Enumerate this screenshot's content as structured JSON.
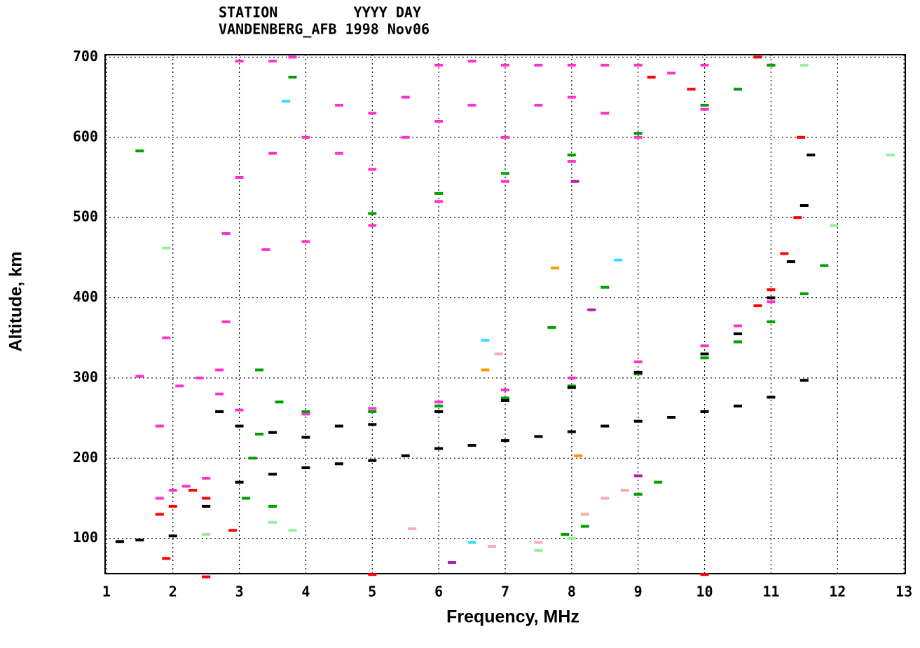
{
  "chart_data": {
    "type": "scatter",
    "header_lines": [
      "STATION         YYYY DAY",
      "VANDENBERG_AFB 1998 Nov06"
    ],
    "x_label": "Frequency, MHz",
    "y_label": "Altitude, km",
    "xlim": [
      0.98,
      13.02
    ],
    "ylim": [
      56,
      703
    ],
    "xticks": [
      1,
      2,
      3,
      4,
      5,
      6,
      7,
      8,
      9,
      10,
      11,
      12,
      13
    ],
    "yticks": [
      100,
      200,
      300,
      400,
      500,
      600,
      700
    ],
    "grid": true,
    "series": [
      {
        "color": "#ff33cc",
        "x": [
          2.8,
          3.4,
          4,
          5,
          6,
          7,
          8,
          9,
          10,
          10.5,
          11,
          3,
          3.5,
          3.8,
          4.5,
          5,
          5.5,
          6,
          6.5,
          7,
          7.5,
          8,
          8.5,
          9,
          9.5,
          10,
          3,
          3.5,
          4,
          4.5,
          5,
          5.5,
          6,
          6.5,
          7,
          7.5,
          8,
          8.5,
          2.7,
          3,
          4,
          5,
          6,
          7,
          8,
          9,
          10,
          10.5,
          11,
          1.8,
          2,
          2.2,
          2.5,
          2.1,
          2.4,
          1.8,
          1.9,
          1.5,
          2.7,
          2.8
        ],
        "values": [
          480,
          460,
          470,
          490,
          520,
          545,
          570,
          600,
          635,
          660,
          690,
          695,
          695,
          700,
          640,
          630,
          650,
          690,
          695,
          690,
          690,
          690,
          690,
          690,
          680,
          690,
          550,
          580,
          600,
          580,
          560,
          600,
          620,
          640,
          600,
          640,
          650,
          630,
          280,
          260,
          255,
          262,
          270,
          285,
          300,
          320,
          340,
          365,
          395,
          150,
          160,
          165,
          175,
          290,
          300,
          240,
          350,
          302,
          310,
          370
        ]
      },
      {
        "color": "#00a000",
        "x": [
          3.3,
          3.6,
          4,
          5,
          6,
          7,
          8,
          9,
          10,
          10.5,
          11,
          11.5,
          11.8,
          5,
          6,
          7,
          8,
          9,
          10,
          10.5,
          11,
          3.2,
          3.3,
          3.1,
          3.5,
          7.9,
          8.2,
          9,
          9.3,
          1.5,
          3.8,
          8.5,
          7.7
        ],
        "values": [
          310,
          270,
          258,
          258,
          265,
          275,
          290,
          305,
          325,
          345,
          370,
          405,
          440,
          505,
          530,
          555,
          578,
          605,
          640,
          660,
          690,
          200,
          230,
          150,
          140,
          105,
          115,
          155,
          170,
          583,
          675,
          413,
          363
        ]
      },
      {
        "color": "#000000",
        "x": [
          1.2,
          1.5,
          2,
          2.5,
          3,
          3.5,
          4,
          4.5,
          5,
          5.5,
          6,
          6.5,
          7,
          7.5,
          8,
          8.5,
          9,
          9.5,
          10,
          10.5,
          11,
          11.5,
          2.7,
          3,
          3.5,
          4,
          4.5,
          5,
          6,
          7,
          8,
          9,
          10,
          10.5,
          11,
          11.3,
          11.5,
          11.6
        ],
        "values": [
          96,
          98,
          103,
          140,
          170,
          180,
          188,
          193,
          197,
          203,
          212,
          216,
          222,
          227,
          233,
          240,
          246,
          251,
          258,
          265,
          276,
          297,
          258,
          240,
          232,
          226,
          240,
          242,
          258,
          272,
          288,
          307,
          330,
          355,
          400,
          445,
          515,
          578
        ]
      },
      {
        "color": "#ff0000",
        "x": [
          10.8,
          11,
          11.2,
          11.4,
          11.45,
          1.8,
          2,
          2.3,
          2.5,
          2.9,
          9.2,
          9.8,
          10.8,
          1.9,
          2.5,
          5,
          10
        ],
        "values": [
          390,
          410,
          455,
          500,
          600,
          130,
          140,
          160,
          150,
          110,
          675,
          660,
          700,
          75,
          52,
          55,
          55
        ]
      },
      {
        "color": "#99ee99",
        "x": [
          2.5,
          3.5,
          3.8,
          7.5,
          8,
          11.5,
          12.8,
          1.9,
          11.95
        ],
        "values": [
          105,
          120,
          110,
          85,
          100,
          690,
          578,
          462,
          490
        ]
      },
      {
        "color": "#ffaaaa",
        "x": [
          7.5,
          8.2,
          8.5,
          8.8,
          5.6,
          6.8,
          6.9
        ],
        "values": [
          95,
          130,
          150,
          160,
          112,
          90,
          330
        ]
      },
      {
        "color": "#33ddff",
        "x": [
          3.7,
          6.5,
          6.7,
          8.7
        ],
        "values": [
          645,
          95,
          347,
          447
        ]
      },
      {
        "color": "#ff9900",
        "x": [
          7.75,
          8.1,
          6.7
        ],
        "values": [
          437,
          203,
          310
        ]
      },
      {
        "color": "#aa22aa",
        "x": [
          8.3,
          6.2,
          9,
          8.05
        ],
        "values": [
          385,
          70,
          178,
          545
        ]
      }
    ]
  }
}
